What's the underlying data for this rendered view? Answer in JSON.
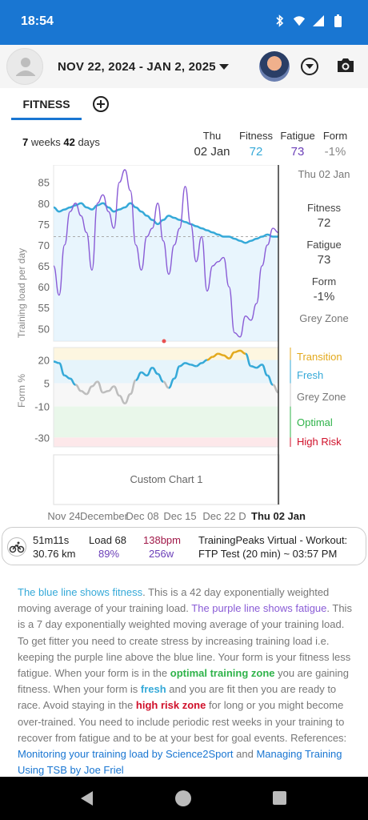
{
  "status_bar": {
    "time": "18:54",
    "icons": [
      "bluetooth-icon",
      "wifi-icon",
      "signal-icon",
      "battery-icon"
    ]
  },
  "app_bar": {
    "date_range": "NOV 22, 2024 - JAN 2, 2025"
  },
  "tabs": [
    {
      "label": "FITNESS",
      "selected": true
    }
  ],
  "summary": {
    "weeks_num": "7",
    "weeks_word": "weeks",
    "days_num": "42",
    "days_word": "days",
    "day": "Thu",
    "date": "02 Jan",
    "fitness_label": "Fitness",
    "fitness_value": "72",
    "fatigue_label": "Fatigue",
    "fatigue_value": "73",
    "form_label": "Form",
    "form_value": "-1%"
  },
  "side_panel": {
    "date": "Thu 02 Jan",
    "fitness_label": "Fitness",
    "fitness_value": "72",
    "fatigue_label": "Fatigue",
    "fatigue_value": "73",
    "form_label": "Form",
    "form_value": "-1%",
    "zone": "Grey Zone"
  },
  "form_zones": [
    "Transition",
    "Fresh",
    "Grey Zone",
    "Optimal",
    "High Risk"
  ],
  "custom_chart_label": "Custom Chart 1",
  "colors": {
    "fitness": "#35a9d8",
    "fatigue": "#8a5cd6",
    "transition": "#e3a91c",
    "optimal": "#2fb34a",
    "high_risk": "#d0102a",
    "accent": "#1976d2"
  },
  "chart_data": [
    {
      "type": "line",
      "ylabel": "Training load per day",
      "ylim": [
        47,
        88
      ],
      "yticks": [
        85,
        80,
        75,
        70,
        65,
        60,
        55,
        50
      ],
      "x_labels": [
        "Nov 24",
        "December",
        "Dec 08",
        "Dec 15",
        "Dec 22",
        "D",
        "Thu 02 Jan"
      ],
      "days": 42,
      "series": [
        {
          "name": "Fitness",
          "values": [
            79,
            78,
            78.5,
            79,
            79.5,
            80,
            79,
            78.5,
            79.5,
            80,
            79,
            78,
            78.5,
            79,
            80,
            79,
            78,
            77,
            76,
            75,
            76,
            77,
            76.5,
            76,
            75.5,
            75,
            74.5,
            74,
            73.5,
            73,
            72.5,
            72,
            72,
            71.5,
            71,
            70.5,
            71,
            71.5,
            72,
            72.5,
            72,
            72
          ]
        },
        {
          "name": "Fatigue",
          "values": [
            65,
            58,
            70,
            78,
            80,
            77,
            73,
            64,
            80,
            82,
            78,
            74,
            85,
            88,
            83,
            70,
            64,
            72,
            74,
            80,
            71,
            63,
            70,
            74,
            84,
            75,
            66,
            72,
            59,
            65,
            66,
            67,
            60,
            49,
            48,
            53,
            52,
            56,
            65,
            70,
            74,
            73
          ]
        }
      ]
    },
    {
      "type": "line",
      "ylabel": "Form %",
      "ylim": [
        -36,
        28
      ],
      "yticks": [
        20,
        5,
        -10,
        -30
      ],
      "series": [
        {
          "name": "Form",
          "values": [
            19,
            18,
            10,
            8,
            4,
            0,
            -2,
            3,
            6,
            -1,
            0,
            3,
            -3,
            -8,
            -2,
            7,
            12,
            10,
            15,
            11,
            6,
            2,
            8,
            16,
            18,
            17,
            16,
            18,
            20,
            22,
            24,
            23,
            21,
            25,
            26,
            24,
            16,
            15,
            17,
            10,
            4,
            -1
          ]
        }
      ]
    }
  ],
  "activity": {
    "duration": "51m11s",
    "distance": "30.76 km",
    "load_label": "Load 68",
    "intensity": "89%",
    "heart_rate": "138bpm",
    "power": "256w",
    "title_line1": "TrainingPeaks Virtual - Workout:",
    "title_line2": "FTP Test (20 min) ~ 03:57 PM"
  },
  "description": {
    "p1_blue": "The blue line shows fitness",
    "p1_text": ". This is a 42 day exponentially weighted moving average of your training load. ",
    "p1_purple": "The purple line shows fatigue",
    "p1_text2": ". This is a 7 day exponentially weighted moving average of your training load. To get fitter you need to create stress by increasing training load i.e. keeping the purple line above the blue line. Your form is your fitness less fatigue. When your form is in the ",
    "p1_green": "optimal training zone",
    "p1_text3": " you are gaining fitness. When your form is ",
    "p1_cyan": "fresh",
    "p1_text4": " and you are fit then you are ready to race. Avoid staying in the ",
    "p1_red": "high risk zone",
    "p1_text5": " for long or you might become over-trained. You need to include periodic rest weeks in your training to recover from fatigue and to be at your best for goal events. References: ",
    "link1": "Monitoring your training load by Science2Sport",
    "and": " and ",
    "link2": "Managing Training Using TSB by Joe Friel"
  }
}
